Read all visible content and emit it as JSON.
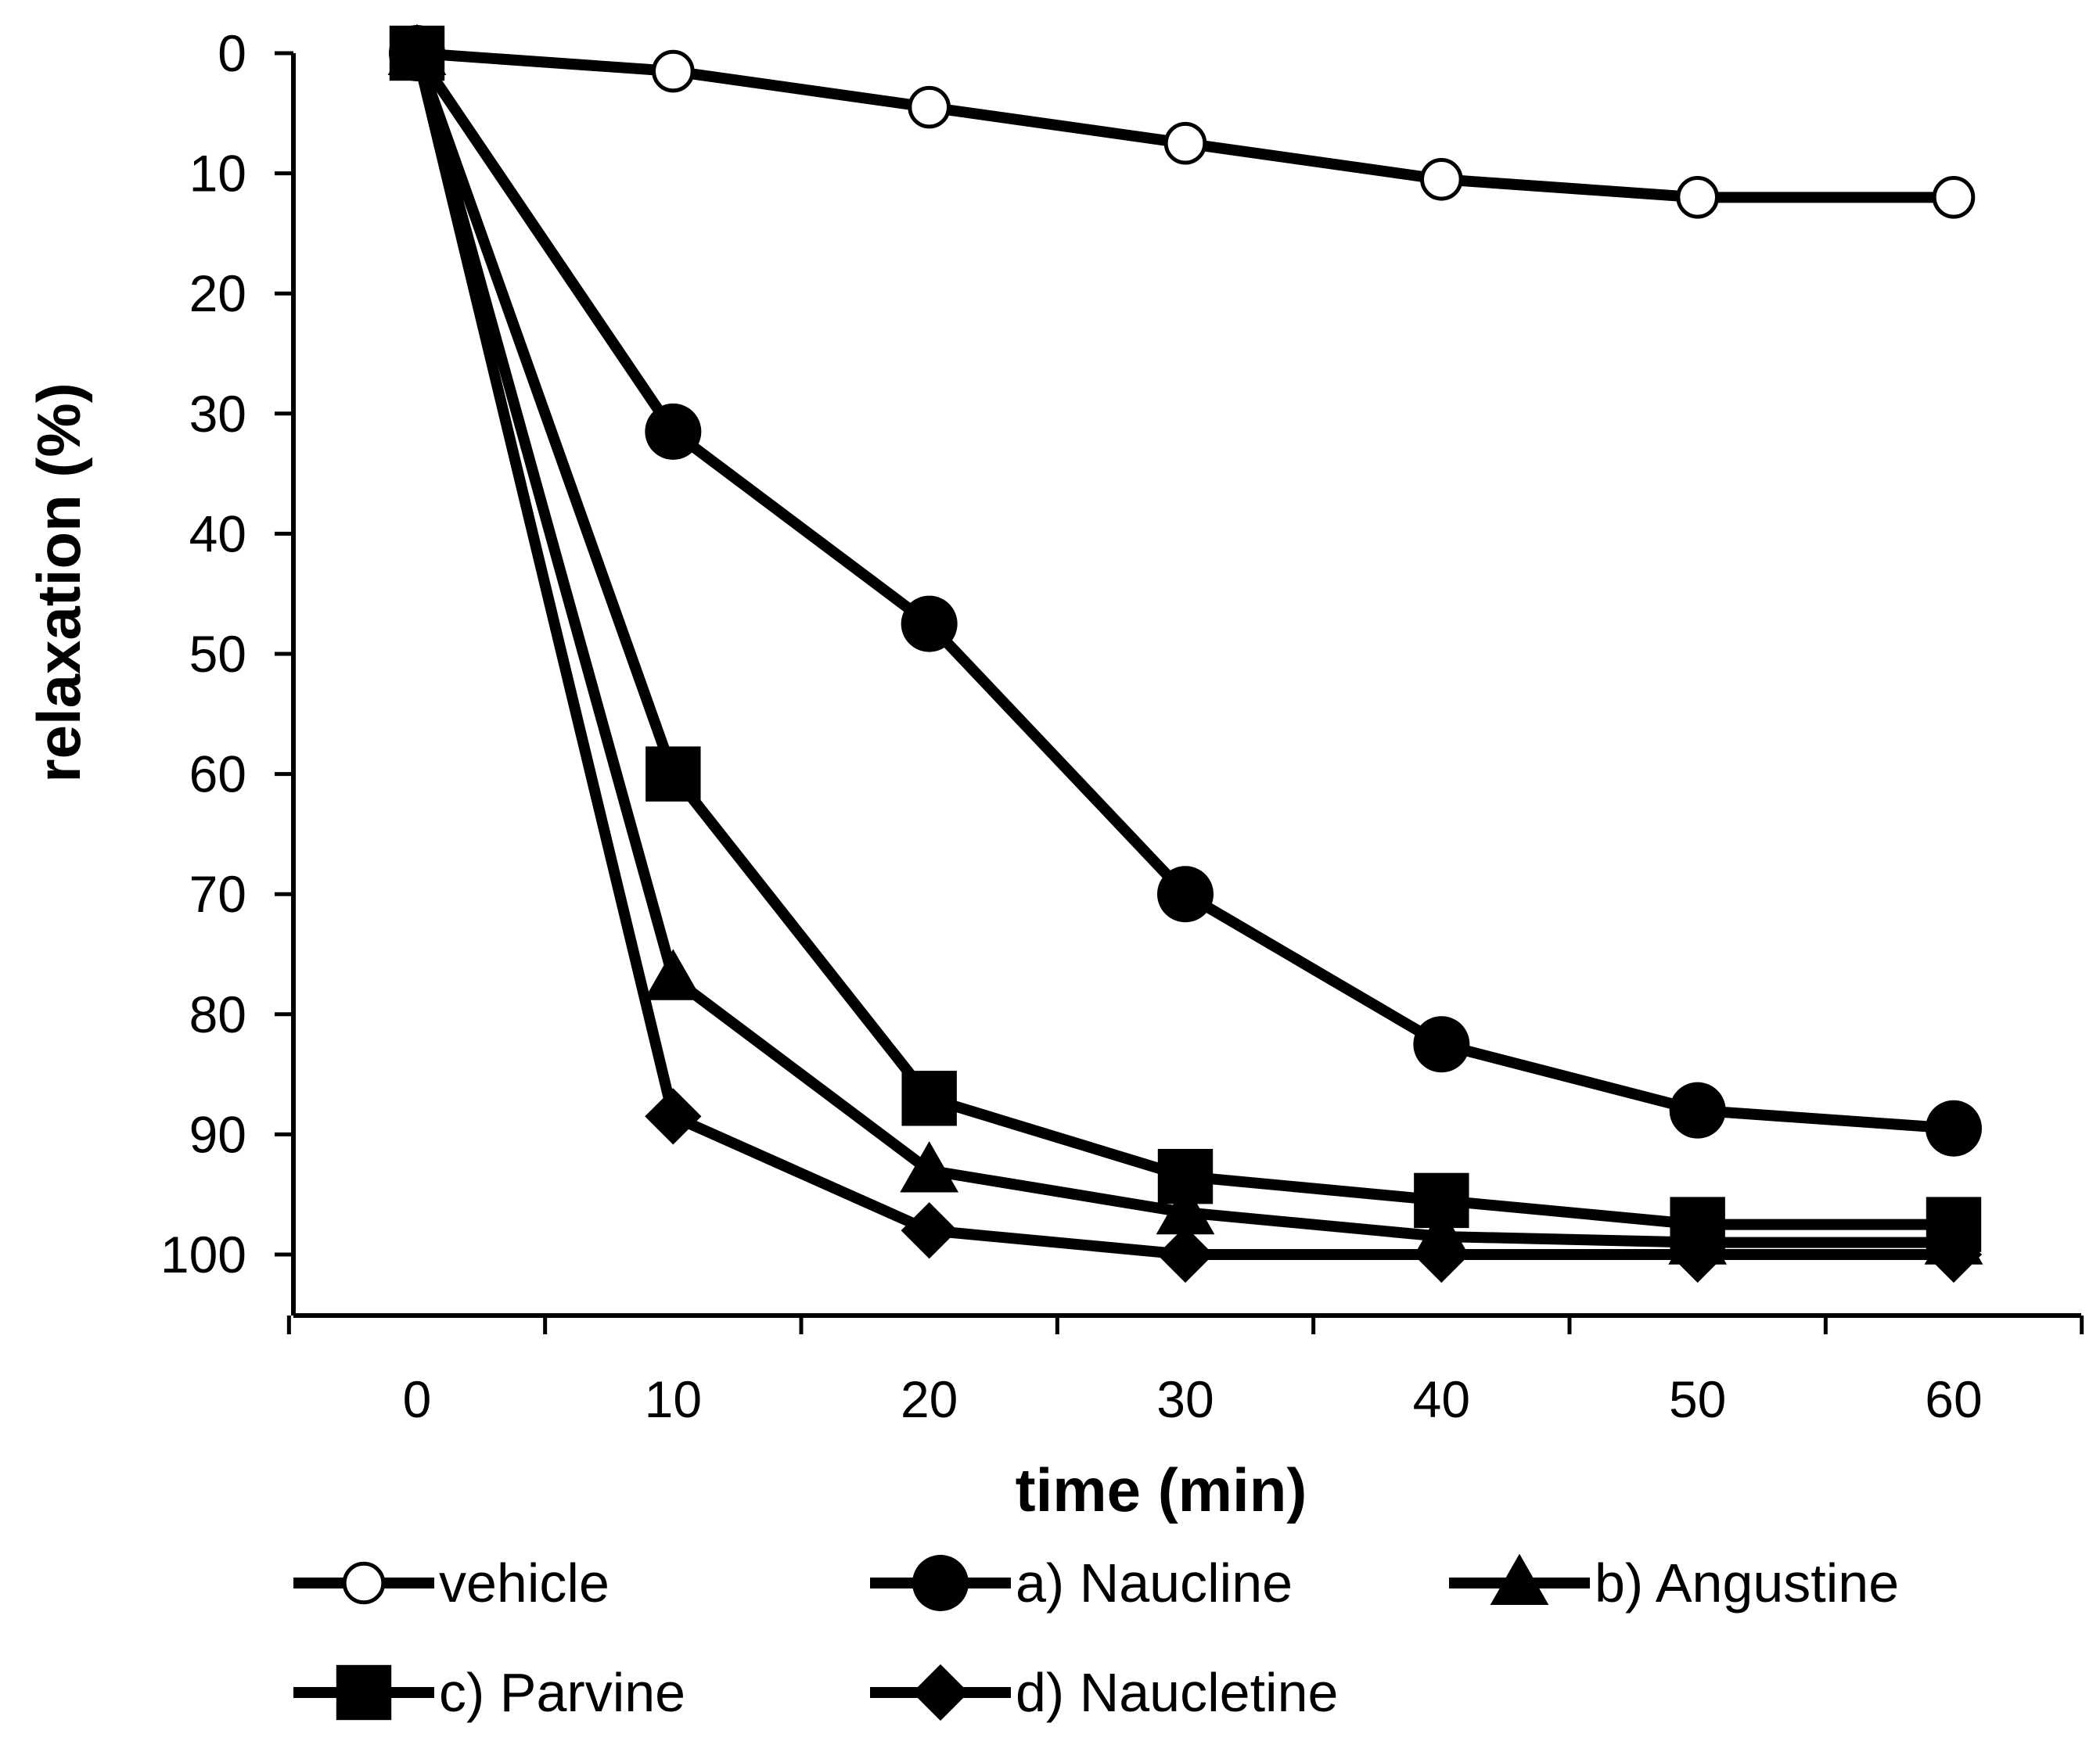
{
  "chart_data": {
    "type": "line",
    "title": "",
    "xlabel": "time (min)",
    "ylabel": "relaxation (%)",
    "x": [
      0,
      10,
      20,
      30,
      40,
      50,
      60
    ],
    "xlim": [
      -5,
      65
    ],
    "ylim": [
      0,
      105
    ],
    "y_inverted": true,
    "xticks": [
      0,
      10,
      20,
      30,
      40,
      50,
      60
    ],
    "yticks": [
      0,
      10,
      20,
      30,
      40,
      50,
      60,
      70,
      80,
      90,
      100
    ],
    "grid": false,
    "legend_position": "bottom",
    "series": [
      {
        "name": "vehicle",
        "marker": "open-circle",
        "values": [
          0,
          1.5,
          4.5,
          7.5,
          10.5,
          12,
          12
        ]
      },
      {
        "name": "a) Naucline",
        "marker": "filled-circle",
        "values": [
          0,
          31.5,
          47.5,
          70,
          82.5,
          88,
          89.5
        ]
      },
      {
        "name": "b) Angustine",
        "marker": "triangle",
        "values": [
          0,
          77,
          93,
          96.5,
          98.5,
          99,
          99
        ]
      },
      {
        "name": "c) Parvine",
        "marker": "square",
        "values": [
          0,
          60,
          87,
          93.5,
          95.5,
          97.5,
          97.5
        ]
      },
      {
        "name": "d) Naucletine",
        "marker": "diamond",
        "values": [
          0,
          88.5,
          98,
          100,
          100,
          100,
          100
        ]
      }
    ]
  }
}
